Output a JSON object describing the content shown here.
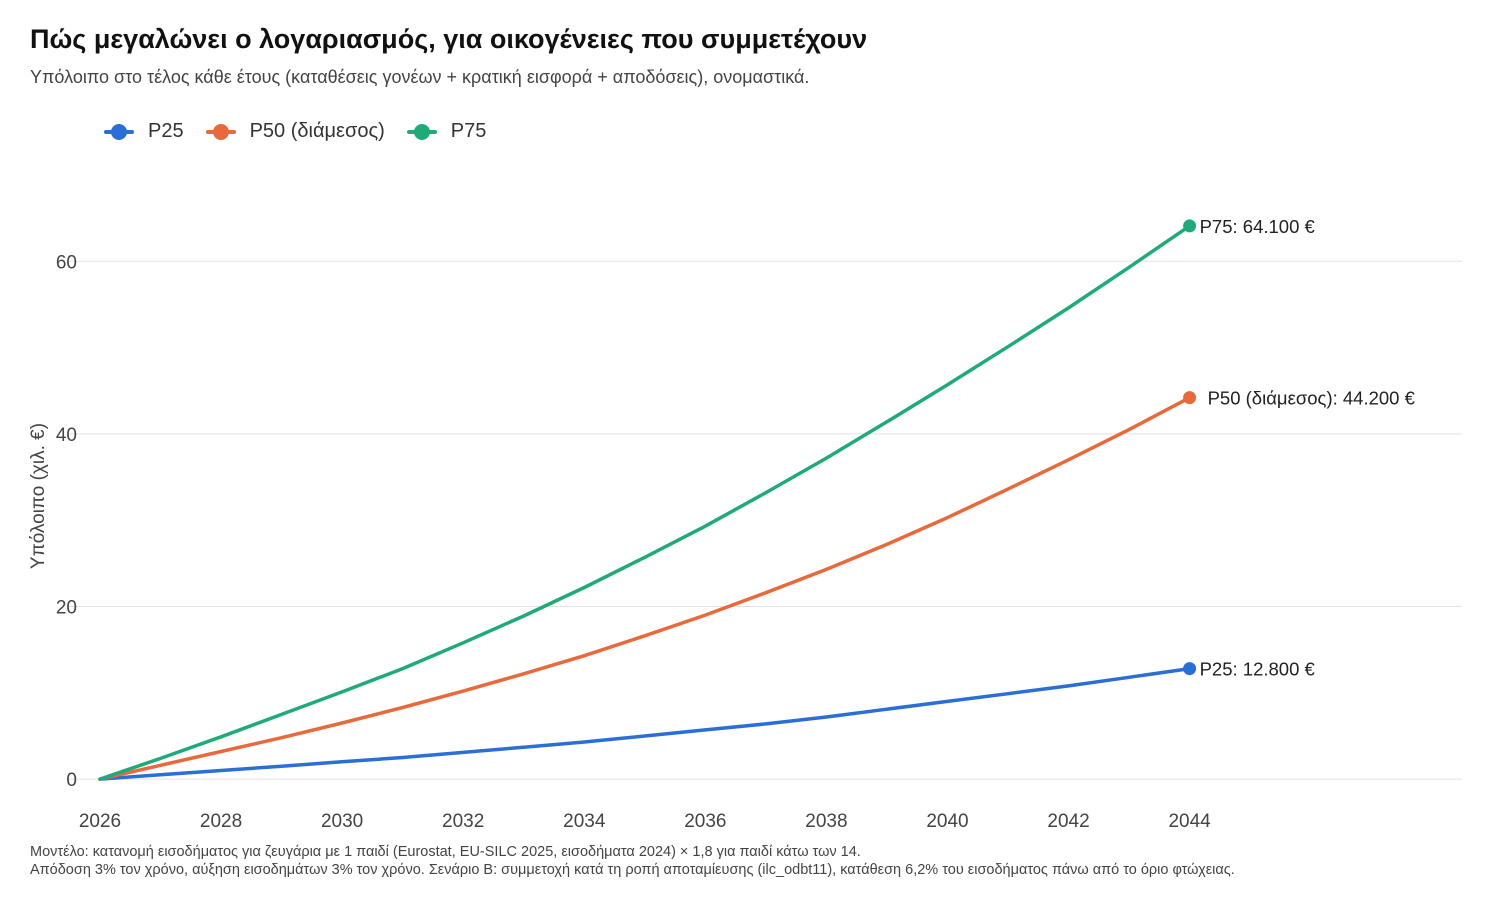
{
  "chart_data": {
    "type": "line",
    "title": "Πώς μεγαλώνει ο λογαριασμός, για οικογένειες που συμμετέχουν",
    "subtitle": "Υπόλοιπο στο τέλος κάθε έτους (καταθέσεις γονέων + κρατική εισφορά + αποδόσεις), ονομαστικά.",
    "xlabel": "",
    "ylabel": "Υπόλοιπο (χιλ. €)",
    "xlim": [
      2026,
      2048.5
    ],
    "ylim": [
      -3,
      70
    ],
    "x_ticks": [
      "2026",
      "2028",
      "2030",
      "2032",
      "2034",
      "2036",
      "2038",
      "2040",
      "2042",
      "2044"
    ],
    "y_ticks": [
      "0",
      "20",
      "40",
      "60"
    ],
    "grid": true,
    "legend_position": "top-left",
    "x": [
      2026,
      2027,
      2028,
      2029,
      2030,
      2031,
      2032,
      2033,
      2034,
      2035,
      2036,
      2037,
      2038,
      2039,
      2040,
      2041,
      2042,
      2043,
      2044
    ],
    "series": [
      {
        "name": "P25",
        "color": "#2b6fd6",
        "values": [
          0,
          0.5,
          1.0,
          1.5,
          2.0,
          2.5,
          3.1,
          3.7,
          4.3,
          5.0,
          5.7,
          6.4,
          7.2,
          8.1,
          9.0,
          9.9,
          10.8,
          11.8,
          12.8
        ],
        "end_label": "P25: 12.800 €"
      },
      {
        "name": "P50 (διάμεσος)",
        "color": "#e8693b",
        "values": [
          0,
          1.6,
          3.2,
          4.8,
          6.5,
          8.3,
          10.2,
          12.2,
          14.3,
          16.6,
          19.0,
          21.6,
          24.3,
          27.2,
          30.3,
          33.6,
          37.0,
          40.5,
          44.2
        ],
        "end_label": "P50 (διάμεσος): 44.200 €"
      },
      {
        "name": "P75",
        "color": "#1faa78",
        "values": [
          0,
          2.4,
          4.9,
          7.5,
          10.1,
          12.8,
          15.8,
          18.9,
          22.2,
          25.7,
          29.3,
          33.2,
          37.2,
          41.4,
          45.7,
          50.1,
          54.6,
          59.3,
          64.1
        ],
        "end_label": "P75: 64.100 €"
      }
    ]
  },
  "footnote": {
    "line1": "Μοντέλο: κατανομή εισοδήματος για ζευγάρια με 1 παιδί (Eurostat, EU-SILC 2025, εισοδήματα 2024) × 1,8 για παιδί κάτω των 14.",
    "line2": "Απόδοση 3% τον χρόνο, αύξηση εισοδημάτων 3% τον χρόνο. Σενάριο Β: συμμετοχή κατά τη ροπή αποταμίευσης (ilc_odbt11), κατάθεση 6,2% του εισοδήματος πάνω από το όριο φτώχειας."
  }
}
